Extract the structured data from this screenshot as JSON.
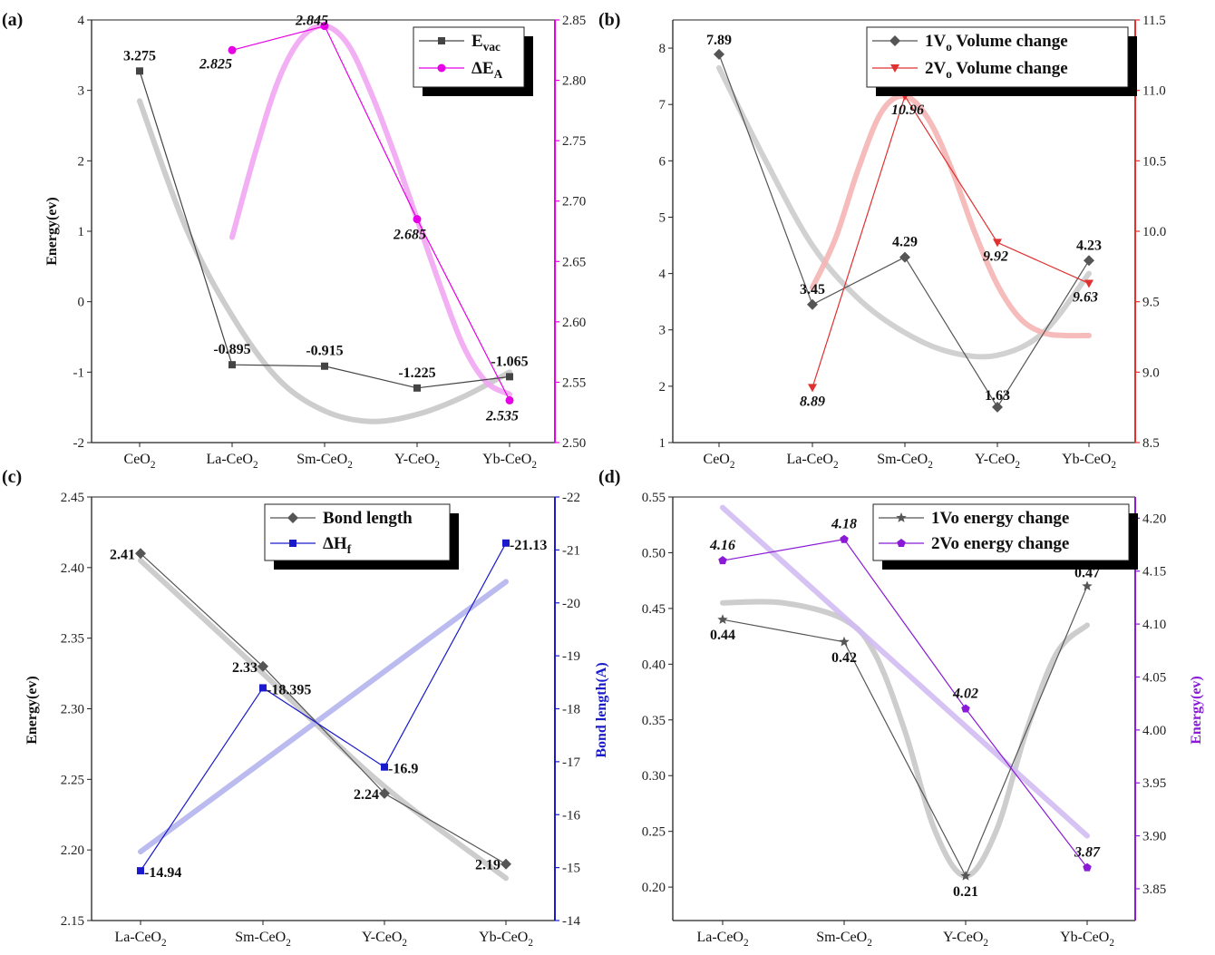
{
  "chart_data": [
    {
      "panel": "(a)",
      "type": "line",
      "categories": [
        "CeO<sub>2</sub>",
        "La-CeO<sub>2</sub>",
        "Sm-CeO<sub>2</sub>",
        "Y-CeO<sub>2</sub>",
        "Yb-CeO<sub>2</sub>"
      ],
      "ylabel": "Energy(ev)",
      "ylabel_right": "",
      "ylim": [
        -2,
        4
      ],
      "yticks": [
        -2,
        -1,
        0,
        1,
        2,
        3,
        4
      ],
      "ylim_right": [
        2.5,
        2.85
      ],
      "yticks_right": [
        "2.50",
        "2.55",
        "2.60",
        "2.65",
        "2.70",
        "2.75",
        "2.80",
        "2.85"
      ],
      "right_axis_color": "#e600e6",
      "legend_position": "top-right",
      "series": [
        {
          "name": "E<sub>vac</sub>",
          "axis": "left",
          "marker": "square",
          "color": "#444444",
          "x": [
            0,
            1,
            2,
            3,
            4
          ],
          "values": [
            3.275,
            -0.895,
            -0.915,
            -1.225,
            -1.065
          ],
          "labels": [
            "3.275",
            "-0.895",
            "-0.915",
            "-1.225",
            "-1.065"
          ],
          "label_style": "bold",
          "fit": {
            "color": "#c8c8c8",
            "x": [
              0,
              0.5,
              1,
              1.5,
              2,
              2.5,
              3,
              3.5,
              4
            ],
            "values": [
              2.85,
              1.05,
              -0.2,
              -1.1,
              -1.55,
              -1.7,
              -1.6,
              -1.35,
              -1.0
            ]
          }
        },
        {
          "name": "ΔE<sub>A</sub>",
          "axis": "right",
          "marker": "circle",
          "color": "#e600e6",
          "x": [
            1,
            2,
            3,
            4
          ],
          "values": [
            2.825,
            2.845,
            2.685,
            2.535
          ],
          "labels": [
            "2.825",
            "2.845",
            "2.685",
            "2.535"
          ],
          "label_style": "italic",
          "fit": {
            "color": "#f2a6f2",
            "x": [
              1,
              1.25,
              1.5,
              1.75,
              2,
              2.25,
              2.5,
              2.75,
              3,
              3.25,
              3.5,
              3.75,
              4
            ],
            "values": [
              2.67,
              2.74,
              2.8,
              2.835,
              2.845,
              2.83,
              2.79,
              2.74,
              2.685,
              2.63,
              2.58,
              2.55,
              2.54
            ]
          }
        }
      ]
    },
    {
      "panel": "(b)",
      "type": "line",
      "categories": [
        "CeO<sub>2</sub>",
        "La-CeO<sub>2</sub>",
        "Sm-CeO<sub>2</sub>",
        "Y-CeO<sub>2</sub>",
        "Yb-CeO<sub>2</sub>"
      ],
      "ylabel": "",
      "ylim": [
        1,
        8.5
      ],
      "yticks": [
        1,
        2,
        3,
        4,
        5,
        6,
        7,
        8
      ],
      "ylim_right": [
        8.5,
        11.5
      ],
      "yticks_right": [
        "8.5",
        "9.0",
        "9.5",
        "10.0",
        "10.5",
        "11.0",
        "11.5"
      ],
      "right_axis_color": "#e03030",
      "legend_position": "top-right",
      "series": [
        {
          "name": "1V<sub>o</sub> Volume change",
          "axis": "left",
          "marker": "diamond",
          "color": "#555555",
          "x": [
            0,
            1,
            2,
            3,
            4
          ],
          "values": [
            7.89,
            3.45,
            4.29,
            1.63,
            4.23
          ],
          "labels": [
            "7.89",
            "3.45",
            "4.29",
            "1.63",
            "4.23"
          ],
          "label_style": "bold",
          "fit": {
            "color": "#cccccc",
            "x": [
              0,
              0.5,
              1,
              1.5,
              2,
              2.5,
              3,
              3.5,
              4
            ],
            "values": [
              7.65,
              6.0,
              4.5,
              3.55,
              2.95,
              2.6,
              2.55,
              2.95,
              4.0
            ]
          }
        },
        {
          "name": "2V<sub>o</sub> Volume change",
          "axis": "right",
          "marker": "triangle-down",
          "color": "#e03030",
          "x": [
            1,
            2,
            3,
            4
          ],
          "values": [
            8.89,
            10.96,
            9.92,
            9.63
          ],
          "labels": [
            "8.89",
            "10.96",
            "9.92",
            "9.63"
          ],
          "label_style": "italic",
          "fit": {
            "color": "#f5b4b4",
            "x": [
              1,
              1.25,
              1.5,
              1.75,
              2,
              2.25,
              2.5,
              2.75,
              3,
              3.25,
              3.5,
              3.75,
              4
            ],
            "values": [
              9.6,
              9.95,
              10.45,
              10.85,
              10.96,
              10.8,
              10.45,
              10.0,
              9.62,
              9.38,
              9.28,
              9.26,
              9.26
            ]
          }
        }
      ]
    },
    {
      "panel": "(c)",
      "type": "line",
      "categories": [
        "La-CeO<sub>2</sub>",
        "Sm-CeO<sub>2</sub>",
        "Y-CeO<sub>2</sub>",
        "Yb-CeO<sub>2</sub>"
      ],
      "ylabel": "Energy(ev)",
      "ylabel_right": "Bond length(A)",
      "ylim": [
        2.15,
        2.45
      ],
      "yticks": [
        "2.15",
        "2.20",
        "2.25",
        "2.30",
        "2.35",
        "2.40",
        "2.45"
      ],
      "ylim_right": [
        -14,
        -22
      ],
      "yticks_right": [
        "-14",
        "-15",
        "-16",
        "-17",
        "-18",
        "-19",
        "-20",
        "-21",
        "-22"
      ],
      "right_axis_color": "#1a1acc",
      "legend_position": "top-right",
      "series": [
        {
          "name": "Bond length",
          "axis": "left",
          "marker": "diamond",
          "color": "#555555",
          "x": [
            0,
            1,
            2,
            3
          ],
          "values": [
            2.41,
            2.33,
            2.24,
            2.19
          ],
          "labels": [
            "2.41",
            "2.33",
            "2.24",
            "2.19"
          ],
          "label_style": "bold",
          "fit": {
            "color": "#c8c8c8",
            "x": [
              0,
              1,
              2,
              3
            ],
            "values": [
              2.405,
              2.325,
              2.245,
              2.18
            ]
          }
        },
        {
          "name": "ΔH<sub>f</sub>",
          "axis": "right",
          "marker": "square",
          "color": "#1a1acc",
          "x": [
            0,
            1,
            2,
            3
          ],
          "values": [
            -14.94,
            -18.395,
            -16.9,
            -21.13
          ],
          "labels": [
            "-14.94",
            "-18.395",
            "-16.9",
            "-21.13"
          ],
          "label_style": "bold",
          "fit": {
            "color": "#b4b4ee",
            "x": [
              0,
              3
            ],
            "values": [
              -15.3,
              -20.4
            ]
          }
        }
      ]
    },
    {
      "panel": "(d)",
      "type": "line",
      "categories": [
        "La-CeO<sub>2</sub>",
        "Sm-CeO<sub>2</sub>",
        "Y-CeO<sub>2</sub>",
        "Yb-CeO<sub>2</sub>"
      ],
      "ylabel": "",
      "ylabel_right": "Energy(ev)",
      "ylim": [
        0.17,
        0.55
      ],
      "yticks": [
        "0.20",
        "0.25",
        "0.30",
        "0.35",
        "0.40",
        "0.45",
        "0.50",
        "0.55"
      ],
      "ylim_right": [
        3.82,
        4.22
      ],
      "yticks_right": [
        "3.85",
        "3.90",
        "3.95",
        "4.00",
        "4.05",
        "4.10",
        "4.15",
        "4.20"
      ],
      "right_axis_color": "#8a1ad6",
      "legend_position": "top-right",
      "series": [
        {
          "name": "1Vo energy change",
          "axis": "left",
          "marker": "star",
          "color": "#555555",
          "x": [
            0,
            1,
            2,
            3
          ],
          "values": [
            0.44,
            0.42,
            0.21,
            0.47
          ],
          "labels": [
            "0.44",
            "0.42",
            "0.21",
            "0.47"
          ],
          "label_style": "bold",
          "fit": {
            "color": "#c8c8c8",
            "x": [
              0,
              0.5,
              1,
              1.25,
              1.5,
              1.75,
              2,
              2.25,
              2.5,
              2.75,
              3
            ],
            "values": [
              0.455,
              0.455,
              0.44,
              0.41,
              0.34,
              0.25,
              0.21,
              0.25,
              0.34,
              0.41,
              0.435
            ]
          }
        },
        {
          "name": "2Vo energy change",
          "axis": "right",
          "marker": "pentagon",
          "color": "#8a1ad6",
          "x": [
            0,
            1,
            2,
            3
          ],
          "values": [
            4.16,
            4.18,
            4.02,
            3.87
          ],
          "labels": [
            "4.16",
            "4.18",
            "4.02",
            "3.87"
          ],
          "label_style": "italic",
          "fit": {
            "color": "#d2bcf2",
            "x": [
              0,
              3
            ],
            "values": [
              4.21,
              3.9
            ]
          }
        }
      ]
    }
  ]
}
